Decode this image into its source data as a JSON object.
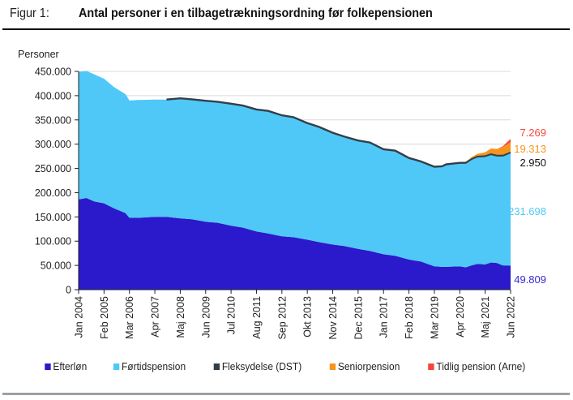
{
  "header": {
    "figure_label": "Figur 1:",
    "title": "Antal personer i en tilbagetrækningsordning før folkepensionen"
  },
  "chart_data": {
    "type": "area",
    "stacked": true,
    "title": "Antal personer i en tilbagetrækningsordning før folkepensionen",
    "ylabel": "Personer",
    "xlabel": "",
    "ylim": [
      0,
      450000
    ],
    "yticks": [
      0,
      50000,
      100000,
      150000,
      200000,
      250000,
      300000,
      350000,
      400000,
      450000
    ],
    "ytick_labels": [
      "0",
      "50.000",
      "100.000",
      "150.000",
      "200.000",
      "250.000",
      "300.000",
      "350.000",
      "400.000",
      "450.000"
    ],
    "grid": "horizontal",
    "legend_position": "bottom",
    "x_tick_labels": [
      "Jan 2004",
      "Feb 2005",
      "Mar 2006",
      "Apr 2007",
      "Maj 2008",
      "Jun 2009",
      "Jul 2010",
      "Aug 2011",
      "Sep 2012",
      "Okt 2013",
      "Nov 2014",
      "Dec 2015",
      "Jan 2017",
      "Feb 2018",
      "Mar 2019",
      "Apr 2020",
      "Maj 2021",
      "Jun 2022"
    ],
    "x_months": [
      0,
      4,
      8,
      13,
      18,
      24,
      26,
      30,
      39,
      45,
      52,
      58,
      65,
      71,
      78,
      84,
      91,
      97,
      104,
      110,
      117,
      123,
      130,
      136,
      143,
      149,
      156,
      162,
      169,
      175,
      182,
      186,
      188,
      195,
      198,
      201,
      204,
      208,
      211,
      214,
      217,
      221
    ],
    "x_axis_start": "Jan 2004",
    "series": [
      {
        "name": "Efterløn",
        "color": "#2a1acb",
        "values": [
          186000,
          189000,
          182000,
          178000,
          168000,
          158000,
          148000,
          148000,
          150000,
          150000,
          147000,
          145000,
          140000,
          138000,
          132000,
          128000,
          120000,
          116000,
          110000,
          108000,
          103000,
          98000,
          93000,
          90000,
          84000,
          80000,
          73000,
          70000,
          62000,
          58000,
          48000,
          47000,
          47000,
          48000,
          46000,
          50000,
          53000,
          52000,
          56000,
          55000,
          50000,
          49809
        ]
      },
      {
        "name": "Førtidspension",
        "color": "#4fc8f8",
        "values": [
          263000,
          262000,
          262000,
          257000,
          250000,
          245000,
          242000,
          243000,
          242000,
          242000,
          246000,
          246000,
          248000,
          248000,
          250000,
          250000,
          250000,
          251000,
          248000,
          246000,
          239000,
          236000,
          229000,
          224000,
          222000,
          222000,
          215000,
          215000,
          208000,
          205000,
          204000,
          206000,
          210000,
          212000,
          214000,
          218000,
          220000,
          222000,
          222000,
          220000,
          225000,
          231698
        ]
      },
      {
        "name": "Fleksydelse (DST)",
        "color": "#333f48",
        "values": [
          0,
          0,
          0,
          0,
          0,
          0,
          0,
          0,
          0,
          0,
          3000,
          3000,
          3000,
          3000,
          3000,
          3000,
          3000,
          3000,
          3000,
          3000,
          3000,
          3000,
          3000,
          3000,
          3000,
          3000,
          3000,
          3000,
          3000,
          3000,
          3000,
          3000,
          3000,
          3000,
          3000,
          3000,
          3000,
          3000,
          3000,
          3000,
          3000,
          2950
        ]
      },
      {
        "name": "Seniorpension",
        "color": "#f7941d",
        "values": [
          0,
          0,
          0,
          0,
          0,
          0,
          0,
          0,
          0,
          0,
          0,
          0,
          0,
          0,
          0,
          0,
          0,
          0,
          0,
          0,
          0,
          0,
          0,
          0,
          0,
          0,
          0,
          0,
          0,
          0,
          0,
          0,
          0,
          0,
          0,
          2000,
          4000,
          6000,
          10000,
          12000,
          16000,
          19313
        ]
      },
      {
        "name": "Tidlig pension (Arne)",
        "color": "#f5463c",
        "values": [
          0,
          0,
          0,
          0,
          0,
          0,
          0,
          0,
          0,
          0,
          0,
          0,
          0,
          0,
          0,
          0,
          0,
          0,
          0,
          0,
          0,
          0,
          0,
          0,
          0,
          0,
          0,
          0,
          0,
          0,
          0,
          0,
          0,
          0,
          0,
          0,
          0,
          0,
          0,
          0,
          1500,
          7269
        ]
      }
    ],
    "end_labels": [
      {
        "series": "Tidlig pension (Arne)",
        "text": "7.269",
        "color": "#f5463c"
      },
      {
        "series": "Seniorpension",
        "text": "19.313",
        "color": "#f7941d"
      },
      {
        "series": "Fleksydelse (DST)",
        "text": "2.950",
        "color": "#111111"
      },
      {
        "series": "Førtidspension",
        "text": "231.698",
        "color": "#4fc8f8"
      },
      {
        "series": "Efterløn",
        "text": "49.809",
        "color": "#3a2ad0"
      }
    ]
  },
  "legend": [
    {
      "label": "Efterløn",
      "color": "#2a1acb"
    },
    {
      "label": "Førtidspension",
      "color": "#4fc8f8"
    },
    {
      "label": "Fleksydelse (DST)",
      "color": "#333f48"
    },
    {
      "label": "Seniorpension",
      "color": "#f7941d"
    },
    {
      "label": "Tidlig pension (Arne)",
      "color": "#f5463c"
    }
  ]
}
